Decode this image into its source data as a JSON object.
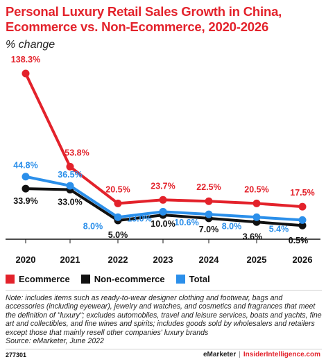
{
  "title": "Personal Luxury Retail Sales Growth in China, Ecommerce vs. Non-Ecommerce, 2020-2026",
  "subtitle": "% change",
  "colors": {
    "ecommerce": "#e3222b",
    "non_ecommerce": "#111111",
    "total": "#2b8fea",
    "axis": "#111111"
  },
  "chart_data": {
    "type": "line",
    "categories": [
      "2020",
      "2021",
      "2022",
      "2023",
      "2024",
      "2025",
      "2026"
    ],
    "series": [
      {
        "name": "Ecommerce",
        "values": [
          138.3,
          53.8,
          20.5,
          23.7,
          22.5,
          20.5,
          17.5
        ],
        "labels": [
          "138.3%",
          "53.8%",
          "20.5%",
          "23.7%",
          "22.5%",
          "20.5%",
          "17.5%"
        ],
        "color": "#e3222b"
      },
      {
        "name": "Non-ecommerce",
        "values": [
          33.9,
          33.0,
          5.0,
          10.0,
          7.0,
          3.6,
          0.5
        ],
        "labels": [
          "33.9%",
          "33.0%",
          "5.0%",
          "10.0%",
          "7.0%",
          "3.6%",
          "0.5%"
        ],
        "color": "#111111"
      },
      {
        "name": "Total",
        "values": [
          44.8,
          36.5,
          8.0,
          13.0,
          10.6,
          8.0,
          5.4
        ],
        "labels": [
          "44.8%",
          "36.5%",
          "8.0%",
          "13.0%",
          "10.6%",
          "8.0%",
          "5.4%"
        ],
        "color": "#2b8fea"
      }
    ],
    "ylim": [
      0,
      138.3
    ],
    "grid": false,
    "legend_position": "bottom-left"
  },
  "legend": [
    {
      "label": "Ecommerce",
      "color": "#e3222b"
    },
    {
      "label": "Non-ecommerce",
      "color": "#111111"
    },
    {
      "label": "Total",
      "color": "#2b8fea"
    }
  ],
  "note": "Note: includes items such as ready-to-wear designer clothing and footwear, bags and accessories (including eyewear), jewelry and watches, and cosmetics and fragrances that meet the definition of \"luxury\"; excludes automobiles, travel and leisure services, boats and yachts, fine art and collectibles, and fine wines and spirits; includes goods sold by wholesalers and retailers except those that mainly resell other companies' luxury brands",
  "source": "Source: eMarketer, June 2022",
  "footer": {
    "id": "277301",
    "brand": "eMarketer",
    "separator": "|",
    "site": "InsiderIntelligence.com"
  }
}
